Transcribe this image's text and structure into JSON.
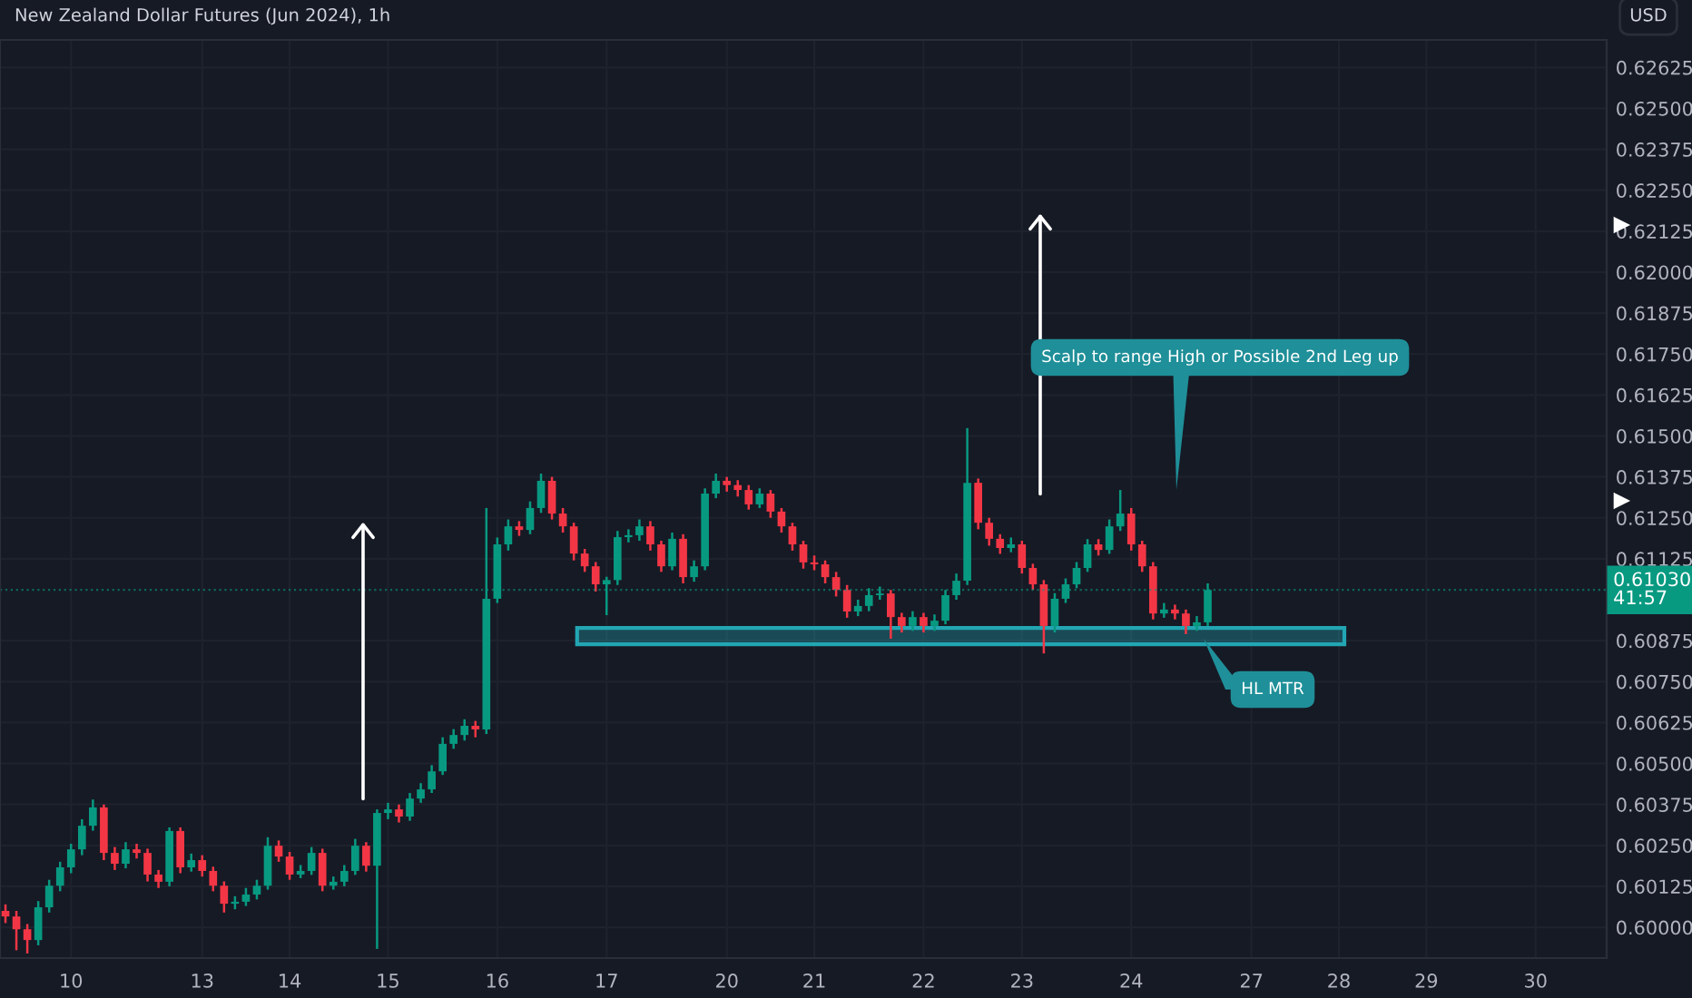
{
  "chart_data": {
    "type": "candlestick",
    "title": "New Zealand Dollar Futures (Jun 2024), 1h",
    "categories": [
      null,
      null,
      null,
      null,
      null,
      null,
      "10",
      null,
      null,
      null,
      null,
      null,
      null,
      null,
      null,
      null,
      null,
      null,
      "13",
      null,
      null,
      null,
      null,
      null,
      null,
      null,
      "14",
      null,
      null,
      null,
      null,
      null,
      null,
      null,
      null,
      "15",
      null,
      null,
      null,
      null,
      null,
      null,
      null,
      null,
      null,
      "16",
      null,
      null,
      null,
      null,
      null,
      null,
      null,
      null,
      null,
      "17",
      null,
      null,
      null,
      null,
      null,
      null,
      null,
      null,
      null,
      null,
      "20",
      null,
      null,
      null,
      null,
      null,
      null,
      null,
      "21",
      null,
      null,
      null,
      null,
      null,
      null,
      null,
      null,
      null,
      "22",
      null,
      null,
      null,
      null,
      null,
      null,
      null,
      null,
      "23",
      null,
      null,
      null,
      null,
      null,
      null,
      null,
      null,
      null,
      "24",
      null,
      null,
      null,
      null,
      null,
      null,
      null,
      null,
      null,
      null,
      "27",
      null,
      null,
      null,
      null,
      null,
      null,
      null,
      "28",
      null,
      null,
      null,
      null,
      null,
      null,
      null,
      "29",
      null,
      null,
      null,
      null,
      null,
      null,
      null,
      null,
      null,
      "30",
      null,
      null,
      null,
      null,
      null,
      null
    ],
    "ohlc": [
      [
        0.6005,
        0.6007,
        0.60013,
        0.60033
      ],
      [
        0.60033,
        0.6005,
        0.5993,
        0.59994
      ],
      [
        0.59994,
        0.6001,
        0.5992,
        0.59961
      ],
      [
        0.59961,
        0.6008,
        0.59945,
        0.60061
      ],
      [
        0.60061,
        0.60145,
        0.60045,
        0.60127
      ],
      [
        0.60127,
        0.602,
        0.6011,
        0.60183
      ],
      [
        0.60183,
        0.60255,
        0.60165,
        0.60238
      ],
      [
        0.60238,
        0.6033,
        0.6022,
        0.6031
      ],
      [
        0.6031,
        0.6039,
        0.60295,
        0.60366
      ],
      [
        0.60366,
        0.60375,
        0.60205,
        0.60227
      ],
      [
        0.60227,
        0.60245,
        0.60175,
        0.60194
      ],
      [
        0.60194,
        0.6026,
        0.6018,
        0.60238
      ],
      [
        0.60238,
        0.60255,
        0.6021,
        0.60227
      ],
      [
        0.60227,
        0.6024,
        0.6014,
        0.60161
      ],
      [
        0.60161,
        0.60175,
        0.6012,
        0.60139
      ],
      [
        0.60139,
        0.60305,
        0.60125,
        0.60294
      ],
      [
        0.60294,
        0.60305,
        0.60165,
        0.60183
      ],
      [
        0.60183,
        0.60225,
        0.6017,
        0.60205
      ],
      [
        0.60205,
        0.6022,
        0.60155,
        0.60172
      ],
      [
        0.60172,
        0.60185,
        0.6011,
        0.60127
      ],
      [
        0.60127,
        0.6014,
        0.60045,
        0.60072
      ],
      [
        0.60072,
        0.60095,
        0.60055,
        0.60078
      ],
      [
        0.60078,
        0.6012,
        0.60065,
        0.601
      ],
      [
        0.601,
        0.60145,
        0.60085,
        0.60127
      ],
      [
        0.60127,
        0.60275,
        0.60115,
        0.60249
      ],
      [
        0.60249,
        0.60265,
        0.602,
        0.60216
      ],
      [
        0.60216,
        0.6023,
        0.60145,
        0.60161
      ],
      [
        0.60161,
        0.6019,
        0.6015,
        0.60172
      ],
      [
        0.60172,
        0.60245,
        0.6016,
        0.60227
      ],
      [
        0.60227,
        0.6024,
        0.6011,
        0.60127
      ],
      [
        0.60127,
        0.60155,
        0.60115,
        0.60139
      ],
      [
        0.60139,
        0.6019,
        0.60125,
        0.60172
      ],
      [
        0.60172,
        0.6027,
        0.6016,
        0.60249
      ],
      [
        0.60249,
        0.6026,
        0.6017,
        0.60188
      ],
      [
        0.60188,
        0.6036,
        0.59934,
        0.60349
      ],
      [
        0.60349,
        0.6038,
        0.6033,
        0.6036
      ],
      [
        0.6036,
        0.60375,
        0.6032,
        0.60338
      ],
      [
        0.60338,
        0.6041,
        0.60325,
        0.60393
      ],
      [
        0.60393,
        0.6044,
        0.6038,
        0.60421
      ],
      [
        0.60421,
        0.60495,
        0.6041,
        0.60476
      ],
      [
        0.60476,
        0.6058,
        0.60465,
        0.6056
      ],
      [
        0.6056,
        0.60605,
        0.60545,
        0.60587
      ],
      [
        0.60587,
        0.60635,
        0.6057,
        0.60615
      ],
      [
        0.60615,
        0.6063,
        0.6058,
        0.60604
      ],
      [
        0.60604,
        0.6128,
        0.6059,
        0.61003
      ],
      [
        0.61003,
        0.6119,
        0.6099,
        0.61169
      ],
      [
        0.61169,
        0.61245,
        0.6115,
        0.61224
      ],
      [
        0.61224,
        0.6124,
        0.61195,
        0.61213
      ],
      [
        0.61213,
        0.613,
        0.612,
        0.6128
      ],
      [
        0.6128,
        0.61385,
        0.61265,
        0.61363
      ],
      [
        0.61363,
        0.61375,
        0.61245,
        0.61263
      ],
      [
        0.61263,
        0.6128,
        0.61205,
        0.61224
      ],
      [
        0.61224,
        0.61235,
        0.6112,
        0.61141
      ],
      [
        0.61141,
        0.61155,
        0.61085,
        0.61102
      ],
      [
        0.61102,
        0.61115,
        0.61025,
        0.61047
      ],
      [
        0.61047,
        0.6107,
        0.60953,
        0.6106
      ],
      [
        0.6106,
        0.6121,
        0.61045,
        0.61191
      ],
      [
        0.61191,
        0.61215,
        0.61175,
        0.61197
      ],
      [
        0.61197,
        0.61245,
        0.6118,
        0.61224
      ],
      [
        0.61224,
        0.6124,
        0.6115,
        0.61169
      ],
      [
        0.61169,
        0.6118,
        0.61085,
        0.61102
      ],
      [
        0.61102,
        0.61205,
        0.6109,
        0.61186
      ],
      [
        0.61186,
        0.612,
        0.6105,
        0.61069
      ],
      [
        0.61069,
        0.6112,
        0.61055,
        0.61102
      ],
      [
        0.61102,
        0.6134,
        0.6109,
        0.61324
      ],
      [
        0.61324,
        0.61385,
        0.6131,
        0.61363
      ],
      [
        0.61363,
        0.61375,
        0.6133,
        0.6135
      ],
      [
        0.6135,
        0.61365,
        0.61315,
        0.61335
      ],
      [
        0.61335,
        0.6135,
        0.61275,
        0.61291
      ],
      [
        0.61291,
        0.6134,
        0.6128,
        0.61324
      ],
      [
        0.61324,
        0.61335,
        0.6125,
        0.61269
      ],
      [
        0.61269,
        0.6128,
        0.61205,
        0.61224
      ],
      [
        0.61224,
        0.61235,
        0.6115,
        0.61169
      ],
      [
        0.61169,
        0.6118,
        0.61095,
        0.61114
      ],
      [
        0.61114,
        0.61135,
        0.6109,
        0.61108
      ],
      [
        0.61108,
        0.6112,
        0.6105,
        0.61069
      ],
      [
        0.61069,
        0.61085,
        0.6101,
        0.6103
      ],
      [
        0.6103,
        0.61045,
        0.60945,
        0.60964
      ],
      [
        0.60964,
        0.61,
        0.6095,
        0.60981
      ],
      [
        0.60981,
        0.61035,
        0.60965,
        0.61014
      ],
      [
        0.61014,
        0.6104,
        0.61,
        0.61019
      ],
      [
        0.61019,
        0.6103,
        0.60881,
        0.60947
      ],
      [
        0.60947,
        0.6096,
        0.609,
        0.6092
      ],
      [
        0.6092,
        0.60965,
        0.60905,
        0.60947
      ],
      [
        0.60947,
        0.6096,
        0.609,
        0.6092
      ],
      [
        0.6092,
        0.60955,
        0.60905,
        0.60936
      ],
      [
        0.60936,
        0.6103,
        0.60925,
        0.61014
      ],
      [
        0.61014,
        0.6108,
        0.61,
        0.61058
      ],
      [
        0.61058,
        0.61524,
        0.61045,
        0.61357
      ],
      [
        0.61357,
        0.6137,
        0.61215,
        0.61235
      ],
      [
        0.61235,
        0.6125,
        0.61165,
        0.61186
      ],
      [
        0.61186,
        0.612,
        0.6114,
        0.61158
      ],
      [
        0.61158,
        0.6119,
        0.61145,
        0.61169
      ],
      [
        0.61169,
        0.6118,
        0.6108,
        0.61097
      ],
      [
        0.61097,
        0.6111,
        0.6103,
        0.61047
      ],
      [
        0.61047,
        0.6106,
        0.60836,
        0.6092
      ],
      [
        0.6092,
        0.6102,
        0.609,
        0.61003
      ],
      [
        0.61003,
        0.61065,
        0.6099,
        0.61047
      ],
      [
        0.61047,
        0.61115,
        0.61035,
        0.61097
      ],
      [
        0.61097,
        0.61185,
        0.61085,
        0.61169
      ],
      [
        0.61169,
        0.61185,
        0.61135,
        0.61152
      ],
      [
        0.61152,
        0.61245,
        0.6114,
        0.61224
      ],
      [
        0.61224,
        0.61335,
        0.6121,
        0.61263
      ],
      [
        0.61263,
        0.6128,
        0.6115,
        0.61169
      ],
      [
        0.61169,
        0.6118,
        0.61085,
        0.61102
      ],
      [
        0.61102,
        0.61115,
        0.6094,
        0.60958
      ],
      [
        0.60958,
        0.6099,
        0.60945,
        0.6097
      ],
      [
        0.6097,
        0.60985,
        0.6094,
        0.60958
      ],
      [
        0.60958,
        0.6097,
        0.60895,
        0.6092
      ],
      [
        0.6092,
        0.6095,
        0.60905,
        0.60931
      ],
      [
        0.60931,
        0.6105,
        0.6092,
        0.6103
      ],
      null,
      null,
      null,
      null,
      null,
      null,
      null,
      null,
      null,
      null,
      null,
      null,
      null,
      null,
      null,
      null,
      null,
      null,
      null,
      null,
      null,
      null,
      null,
      null,
      null,
      null,
      null,
      null,
      null,
      null,
      null,
      null,
      null,
      null,
      null,
      null
    ],
    "colors": [
      "#f23645",
      "#f23645",
      "#f23645",
      "#089981",
      "#089981",
      "#089981",
      "#089981",
      "#089981",
      "#089981",
      "#f23645",
      "#f23645",
      "#089981",
      "#f23645",
      "#f23645",
      "#f23645",
      "#089981",
      "#f23645",
      "#089981",
      "#f23645",
      "#f23645",
      "#f23645",
      "#089981",
      "#089981",
      "#089981",
      "#089981",
      "#f23645",
      "#f23645",
      "#089981",
      "#089981",
      "#f23645",
      "#089981",
      "#089981",
      "#089981",
      "#f23645",
      "#089981",
      "#089981",
      "#f23645",
      "#089981",
      "#089981",
      "#089981",
      "#089981",
      "#089981",
      "#089981",
      "#f23645",
      "#089981",
      "#089981",
      "#089981",
      "#f23645",
      "#089981",
      "#089981",
      "#f23645",
      "#f23645",
      "#f23645",
      "#f23645",
      "#f23645",
      "#089981",
      "#089981",
      "#089981",
      "#089981",
      "#f23645",
      "#f23645",
      "#089981",
      "#f23645",
      "#089981",
      "#089981",
      "#089981",
      "#f23645",
      "#f23645",
      "#f23645",
      "#089981",
      "#f23645",
      "#f23645",
      "#f23645",
      "#f23645",
      "#f23645",
      "#f23645",
      "#f23645",
      "#f23645",
      "#089981",
      "#089981",
      "#089981",
      "#f23645",
      "#f23645",
      "#089981",
      "#f23645",
      "#089981",
      "#089981",
      "#089981",
      "#089981",
      "#f23645",
      "#f23645",
      "#f23645",
      "#089981",
      "#f23645",
      "#f23645",
      "#f23645",
      "#089981",
      "#089981",
      "#089981",
      "#089981",
      "#f23645",
      "#089981",
      "#089981",
      "#f23645",
      "#f23645",
      "#f23645",
      "#089981",
      "#f23645",
      "#f23645",
      "#089981",
      "#089981",
      null,
      null,
      null,
      null,
      null,
      null,
      null,
      null,
      null,
      null,
      null,
      null,
      null,
      null,
      null,
      null,
      null,
      null,
      null,
      null,
      null,
      null,
      null,
      null,
      null,
      null,
      null,
      null,
      null,
      null,
      null,
      null,
      null,
      null,
      null,
      null
    ],
    "ylim": [
      0.59906,
      0.62709
    ],
    "yticks": [
      {
        "value": 0.6,
        "label": "0.60000"
      },
      {
        "value": 0.60125,
        "label": "0.60125"
      },
      {
        "value": 0.6025,
        "label": "0.60250"
      },
      {
        "value": 0.60375,
        "label": "0.60375"
      },
      {
        "value": 0.605,
        "label": "0.60500"
      },
      {
        "value": 0.60625,
        "label": "0.60625"
      },
      {
        "value": 0.6075,
        "label": "0.60750"
      },
      {
        "value": 0.60875,
        "label": "0.60875"
      },
      {
        "value": 0.61125,
        "label": "0.61125"
      },
      {
        "value": 0.6125,
        "label": "0.61250"
      },
      {
        "value": 0.61375,
        "label": "0.61375"
      },
      {
        "value": 0.615,
        "label": "0.61500"
      },
      {
        "value": 0.61625,
        "label": "0.61625"
      },
      {
        "value": 0.6175,
        "label": "0.61750"
      },
      {
        "value": 0.61875,
        "label": "0.61875"
      },
      {
        "value": 0.62,
        "label": "0.62000"
      },
      {
        "value": 0.62125,
        "label": "0.62125"
      },
      {
        "value": 0.6225,
        "label": "0.62250"
      },
      {
        "value": 0.62375,
        "label": "0.62375"
      },
      {
        "value": 0.625,
        "label": "0.62500"
      },
      {
        "value": 0.62625,
        "label": "0.62625"
      }
    ],
    "grid": true,
    "ref_lines": [
      {
        "axis": "y",
        "value": 0.6103,
        "label": "0.61030\n41:57",
        "color": "#089981",
        "line_style": "dotted"
      }
    ],
    "bands": [
      {
        "axis": "y",
        "from": 0.60864,
        "to": 0.60914,
        "color": "#22a6b3"
      }
    ],
    "annotations": [
      "Scalp to range High or Possible 2nd Leg up",
      "HL MTR",
      "USD"
    ]
  }
}
